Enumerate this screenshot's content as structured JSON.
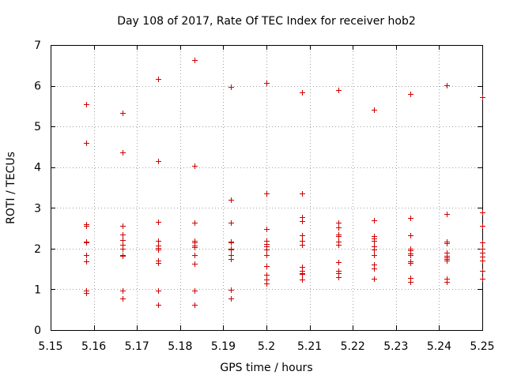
{
  "chart_data": {
    "type": "scatter",
    "title": "Day 108 of 2017, Rate Of TEC Index for receiver hob2",
    "xlabel": "GPS time / hours",
    "ylabel": "ROTI / TECUs",
    "xlim": [
      5.15,
      5.25
    ],
    "ylim": [
      0,
      7
    ],
    "xticks": [
      "5.15",
      "5.16",
      "5.17",
      "5.18",
      "5.19",
      "5.2",
      "5.21",
      "5.22",
      "5.23",
      "5.24",
      "5.25"
    ],
    "yticks": [
      "0",
      "1",
      "2",
      "3",
      "4",
      "5",
      "6",
      "7"
    ],
    "grid": true,
    "marker": "+",
    "color": "#cc0000",
    "series": [
      {
        "name": "ROTI",
        "points": [
          [
            5.1583,
            5.55
          ],
          [
            5.1583,
            4.6
          ],
          [
            5.1583,
            2.6
          ],
          [
            5.1583,
            2.55
          ],
          [
            5.1583,
            2.18
          ],
          [
            5.1583,
            2.15
          ],
          [
            5.1583,
            1.85
          ],
          [
            5.1583,
            1.68
          ],
          [
            5.1583,
            0.97
          ],
          [
            5.1583,
            0.92
          ],
          [
            5.1667,
            5.34
          ],
          [
            5.1667,
            4.37
          ],
          [
            5.1667,
            2.55
          ],
          [
            5.1667,
            2.35
          ],
          [
            5.1667,
            2.22
          ],
          [
            5.1667,
            2.1
          ],
          [
            5.1667,
            2.0
          ],
          [
            5.1667,
            1.85
          ],
          [
            5.1667,
            1.82
          ],
          [
            5.1667,
            0.96
          ],
          [
            5.1667,
            0.77
          ],
          [
            5.175,
            6.17
          ],
          [
            5.175,
            4.14
          ],
          [
            5.175,
            2.65
          ],
          [
            5.175,
            2.2
          ],
          [
            5.175,
            2.08
          ],
          [
            5.175,
            2.02
          ],
          [
            5.175,
            1.97
          ],
          [
            5.175,
            1.7
          ],
          [
            5.175,
            1.65
          ],
          [
            5.175,
            0.97
          ],
          [
            5.175,
            0.63
          ],
          [
            5.1833,
            6.63
          ],
          [
            5.1833,
            4.03
          ],
          [
            5.1833,
            2.63
          ],
          [
            5.1833,
            2.2
          ],
          [
            5.1833,
            2.15
          ],
          [
            5.1833,
            2.07
          ],
          [
            5.1833,
            2.03
          ],
          [
            5.1833,
            1.85
          ],
          [
            5.1833,
            1.63
          ],
          [
            5.1833,
            0.96
          ],
          [
            5.1833,
            0.63
          ],
          [
            5.1917,
            5.98
          ],
          [
            5.1917,
            3.19
          ],
          [
            5.1917,
            2.63
          ],
          [
            5.1917,
            2.17
          ],
          [
            5.1917,
            2.15
          ],
          [
            5.1917,
            2.0
          ],
          [
            5.1917,
            1.97
          ],
          [
            5.1917,
            1.85
          ],
          [
            5.1917,
            1.75
          ],
          [
            5.1917,
            0.98
          ],
          [
            5.1917,
            0.78
          ],
          [
            5.2,
            6.06
          ],
          [
            5.2,
            3.36
          ],
          [
            5.2,
            2.48
          ],
          [
            5.2,
            2.2
          ],
          [
            5.2,
            2.12
          ],
          [
            5.2,
            2.05
          ],
          [
            5.2,
            1.98
          ],
          [
            5.2,
            1.85
          ],
          [
            5.2,
            1.57
          ],
          [
            5.2,
            1.35
          ],
          [
            5.2,
            1.25
          ],
          [
            5.2,
            1.15
          ],
          [
            5.2083,
            5.84
          ],
          [
            5.2083,
            3.35
          ],
          [
            5.2083,
            2.78
          ],
          [
            5.2083,
            2.68
          ],
          [
            5.2083,
            2.33
          ],
          [
            5.2083,
            2.2
          ],
          [
            5.2083,
            2.1
          ],
          [
            5.2083,
            1.55
          ],
          [
            5.2083,
            1.45
          ],
          [
            5.2083,
            1.4
          ],
          [
            5.2083,
            1.38
          ],
          [
            5.2083,
            1.25
          ],
          [
            5.2167,
            5.9
          ],
          [
            5.2167,
            2.63
          ],
          [
            5.2167,
            2.52
          ],
          [
            5.2167,
            2.35
          ],
          [
            5.2167,
            2.3
          ],
          [
            5.2167,
            2.18
          ],
          [
            5.2167,
            2.1
          ],
          [
            5.2167,
            1.67
          ],
          [
            5.2167,
            1.45
          ],
          [
            5.2167,
            1.4
          ],
          [
            5.2167,
            1.3
          ],
          [
            5.225,
            5.41
          ],
          [
            5.225,
            2.7
          ],
          [
            5.225,
            2.3
          ],
          [
            5.225,
            2.25
          ],
          [
            5.225,
            2.2
          ],
          [
            5.225,
            2.05
          ],
          [
            5.225,
            1.98
          ],
          [
            5.225,
            1.85
          ],
          [
            5.225,
            1.6
          ],
          [
            5.225,
            1.52
          ],
          [
            5.225,
            1.27
          ],
          [
            5.2333,
            5.8
          ],
          [
            5.2333,
            2.75
          ],
          [
            5.2333,
            2.33
          ],
          [
            5.2333,
            2.0
          ],
          [
            5.2333,
            1.95
          ],
          [
            5.2333,
            1.88
          ],
          [
            5.2333,
            1.85
          ],
          [
            5.2333,
            1.68
          ],
          [
            5.2333,
            1.64
          ],
          [
            5.2333,
            1.28
          ],
          [
            5.2333,
            1.18
          ],
          [
            5.2417,
            6.01
          ],
          [
            5.2417,
            2.85
          ],
          [
            5.2417,
            2.17
          ],
          [
            5.2417,
            2.13
          ],
          [
            5.2417,
            1.9
          ],
          [
            5.2417,
            1.82
          ],
          [
            5.2417,
            1.78
          ],
          [
            5.2417,
            1.75
          ],
          [
            5.2417,
            1.7
          ],
          [
            5.2417,
            1.27
          ],
          [
            5.2417,
            1.18
          ],
          [
            5.25,
            5.72
          ],
          [
            5.25,
            2.88
          ],
          [
            5.25,
            2.55
          ],
          [
            5.25,
            2.15
          ],
          [
            5.25,
            2.0
          ],
          [
            5.25,
            1.9
          ],
          [
            5.25,
            1.8
          ],
          [
            5.25,
            1.7
          ],
          [
            5.25,
            1.45
          ],
          [
            5.25,
            1.27
          ]
        ]
      }
    ]
  }
}
